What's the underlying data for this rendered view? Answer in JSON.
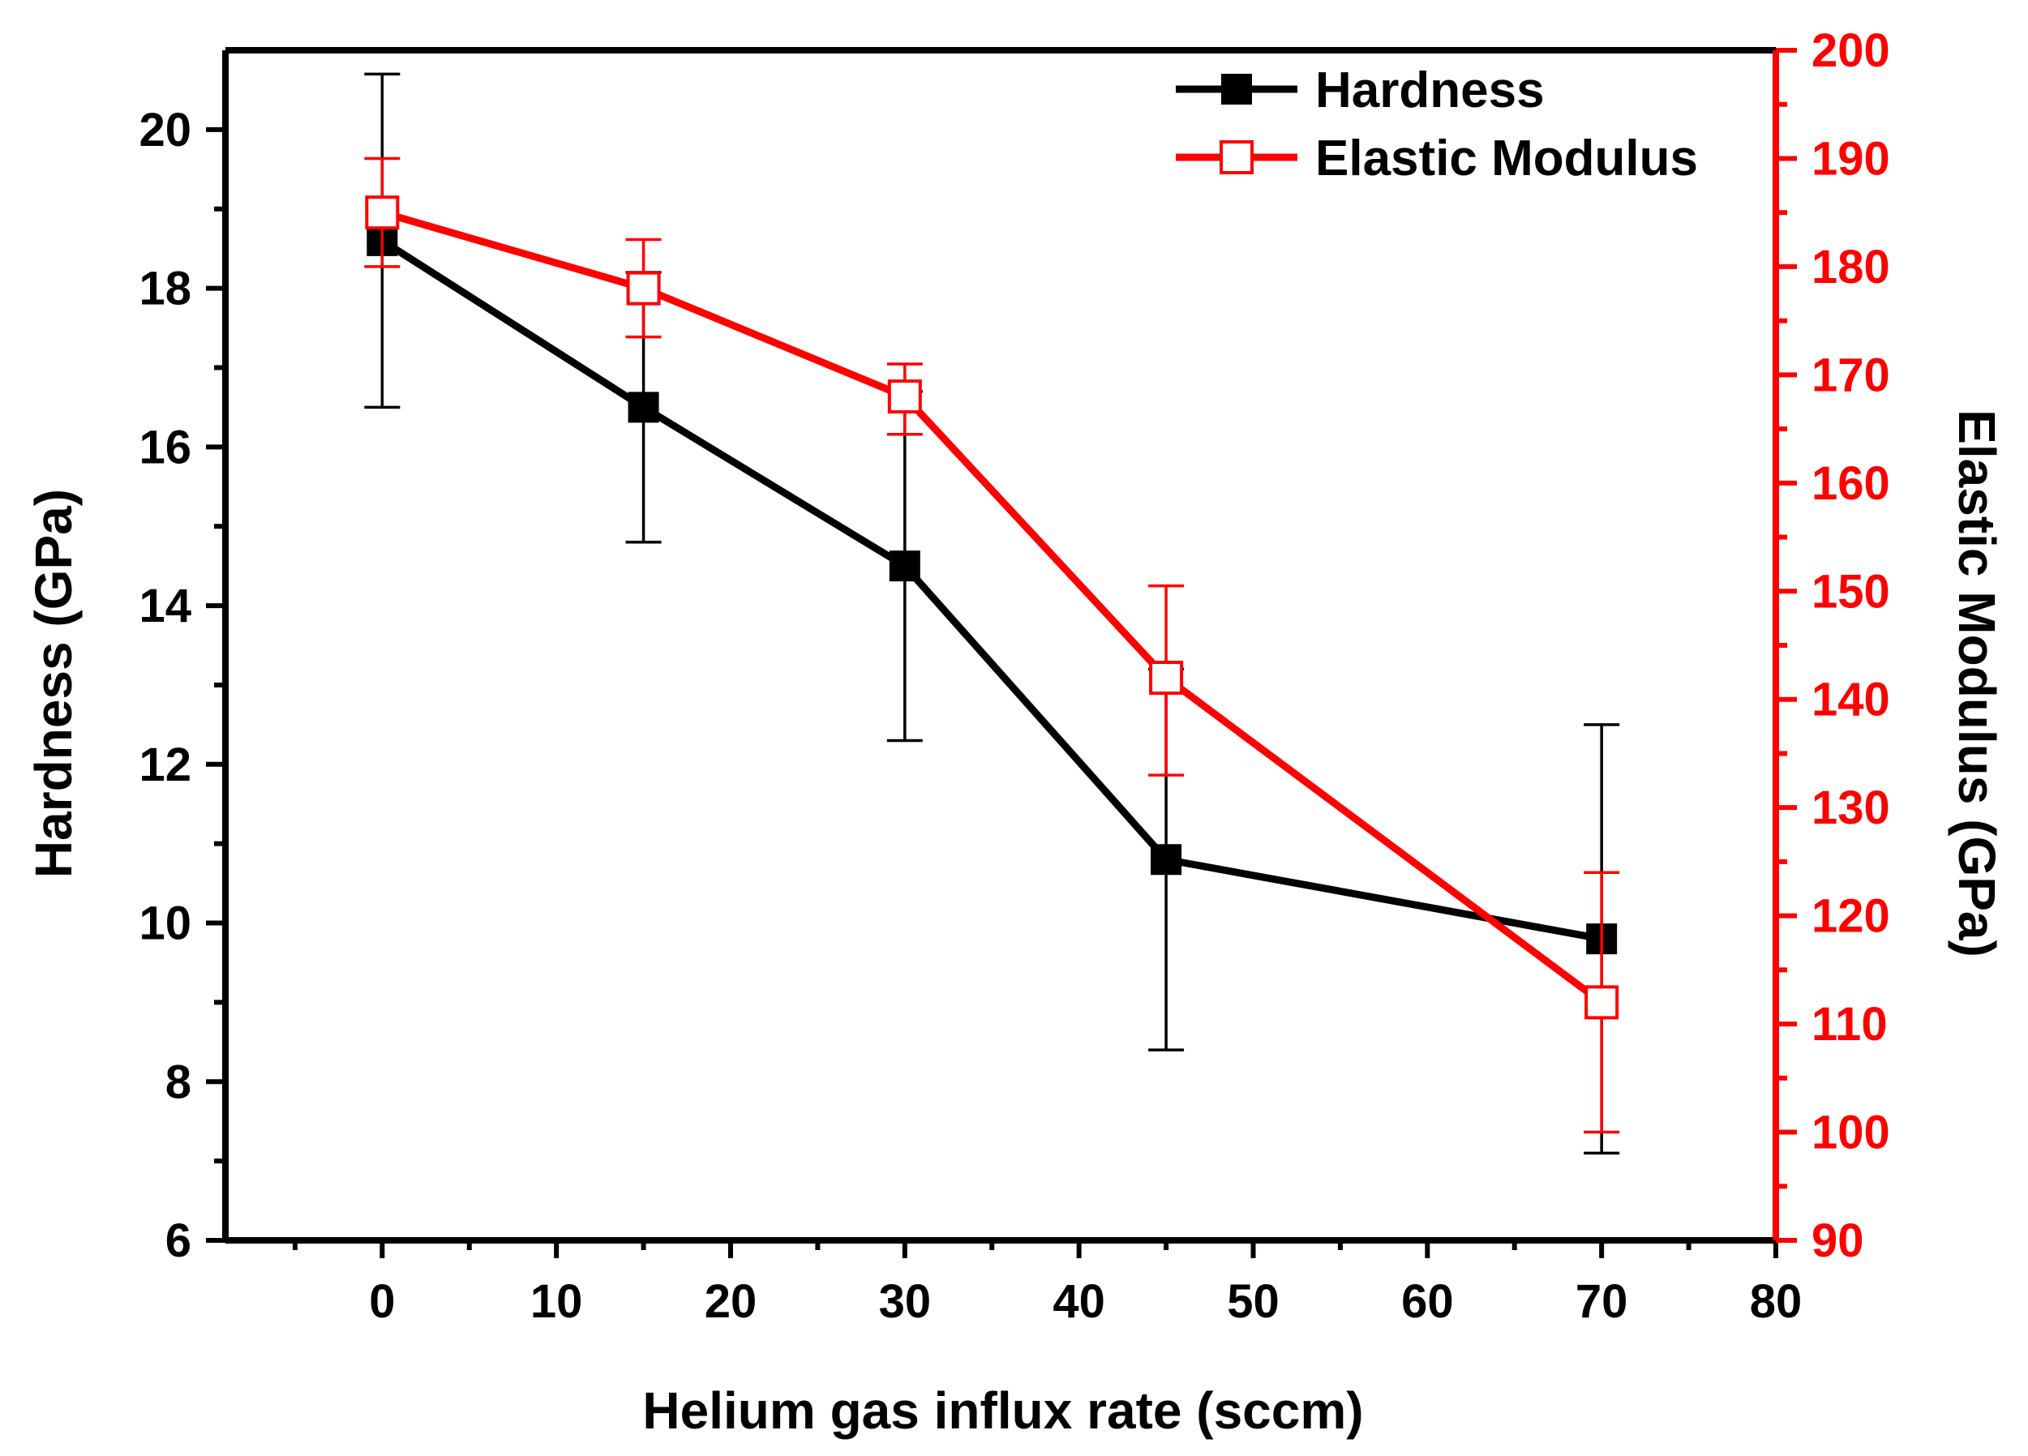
{
  "chart_data": {
    "type": "line",
    "title": "",
    "xlabel": "Helium gas influx rate (sccm)",
    "ylabel_left": "Hardness (GPa)",
    "ylabel_right": "Elastic Modulus (GPa)",
    "xlim": [
      -9,
      80
    ],
    "ylim_left": [
      6,
      21
    ],
    "ylim_right": [
      90,
      200
    ],
    "x_ticks": [
      0,
      10,
      20,
      30,
      40,
      50,
      60,
      70,
      80
    ],
    "x_tick_labels": [
      "0",
      "10",
      "20",
      "30",
      "40",
      "50",
      "60",
      "70",
      "80"
    ],
    "y_left_ticks": [
      6,
      8,
      10,
      12,
      14,
      16,
      18,
      20
    ],
    "y_left_tick_labels": [
      "6",
      "8",
      "10",
      "12",
      "14",
      "16",
      "18",
      "20"
    ],
    "y_right_ticks": [
      90,
      100,
      110,
      120,
      130,
      140,
      150,
      160,
      170,
      180,
      190,
      200
    ],
    "y_right_tick_labels": [
      "90",
      "100",
      "110",
      "120",
      "130",
      "140",
      "150",
      "160",
      "170",
      "180",
      "190",
      "200"
    ],
    "legend_position": "top-right",
    "series": [
      {
        "name": "Hardness",
        "axis": "left",
        "color": "#000000",
        "marker": "filled-square",
        "x": [
          0,
          15,
          30,
          45,
          70
        ],
        "y": [
          18.6,
          16.5,
          14.5,
          10.8,
          9.8
        ],
        "err_low": [
          16.5,
          14.8,
          12.3,
          8.4,
          7.1
        ],
        "err_high": [
          20.7,
          18.2,
          16.7,
          13.2,
          12.5
        ]
      },
      {
        "name": "Elastic Modulus",
        "axis": "right",
        "color": "#ff0000",
        "marker": "open-square",
        "x": [
          0,
          15,
          30,
          45,
          70
        ],
        "y": [
          185,
          178,
          168,
          142,
          112
        ],
        "err_low": [
          180,
          173.5,
          164.5,
          133,
          100
        ],
        "err_high": [
          190,
          182.5,
          171,
          150.5,
          124
        ]
      }
    ]
  }
}
